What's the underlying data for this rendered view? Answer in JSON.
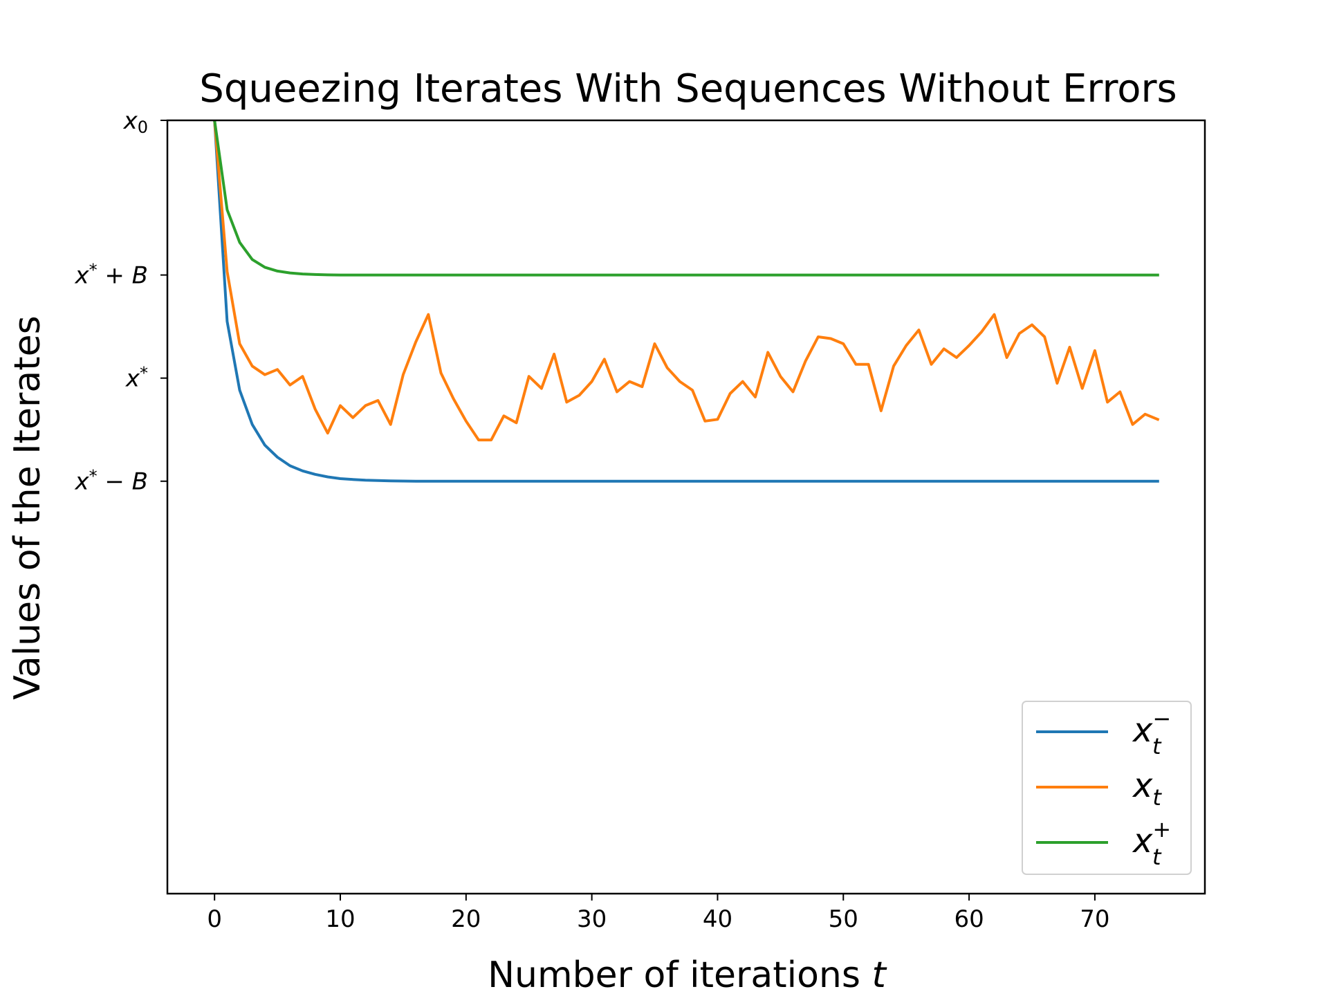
{
  "chart_data": {
    "type": "line",
    "title": "Squeezing Iterates With Sequences Without Errors",
    "xlabel": "Number of iterations",
    "xlabel_var": "t",
    "ylabel": "Values of the Iterates",
    "xlim": [
      -3.75,
      78.75
    ],
    "ylim": [
      -3.0,
      1.5
    ],
    "xticks": [
      0,
      10,
      20,
      30,
      40,
      50,
      60,
      70
    ],
    "yticks": [
      {
        "value": 1.5,
        "label": "x",
        "sub": "0",
        "sup": ""
      },
      {
        "value": 0.6,
        "label": "x",
        "sub": "",
        "sup": "*",
        "suffix": " + B"
      },
      {
        "value": 0.0,
        "label": "x",
        "sub": "",
        "sup": "*",
        "suffix": ""
      },
      {
        "value": -0.6,
        "label": "x",
        "sub": "",
        "sup": "*",
        "suffix": " − B"
      }
    ],
    "grid": false,
    "legend_position": "lower-right",
    "series": [
      {
        "name": "x_t^-",
        "legend_base": "x",
        "legend_sub": "t",
        "legend_sup": "−",
        "color": "#1f77b4",
        "x": [
          0,
          1,
          2,
          3,
          4,
          5,
          6,
          7,
          8,
          9,
          10,
          11,
          12,
          13,
          14,
          15,
          16,
          17,
          18,
          19,
          20,
          21,
          22,
          23,
          24,
          25,
          26,
          27,
          28,
          29,
          30,
          31,
          32,
          33,
          34,
          35,
          36,
          37,
          38,
          39,
          40,
          41,
          42,
          43,
          44,
          45,
          46,
          47,
          48,
          49,
          50,
          51,
          52,
          53,
          54,
          55,
          56,
          57,
          58,
          59,
          60,
          61,
          62,
          63,
          64,
          65,
          66,
          67,
          68,
          69,
          70,
          71,
          72,
          73,
          74,
          75
        ],
        "y": [
          1.5,
          0.33,
          -0.07,
          -0.27,
          -0.39,
          -0.46,
          -0.51,
          -0.54,
          -0.56,
          -0.575,
          -0.585,
          -0.59,
          -0.594,
          -0.596,
          -0.598,
          -0.599,
          -0.6,
          -0.6,
          -0.6,
          -0.6,
          -0.6,
          -0.6,
          -0.6,
          -0.6,
          -0.6,
          -0.6,
          -0.6,
          -0.6,
          -0.6,
          -0.6,
          -0.6,
          -0.6,
          -0.6,
          -0.6,
          -0.6,
          -0.6,
          -0.6,
          -0.6,
          -0.6,
          -0.6,
          -0.6,
          -0.6,
          -0.6,
          -0.6,
          -0.6,
          -0.6,
          -0.6,
          -0.6,
          -0.6,
          -0.6,
          -0.6,
          -0.6,
          -0.6,
          -0.6,
          -0.6,
          -0.6,
          -0.6,
          -0.6,
          -0.6,
          -0.6,
          -0.6,
          -0.6,
          -0.6,
          -0.6,
          -0.6,
          -0.6,
          -0.6,
          -0.6,
          -0.6,
          -0.6,
          -0.6,
          -0.6,
          -0.6,
          -0.6,
          -0.6,
          -0.6
        ]
      },
      {
        "name": "x_t",
        "legend_base": "x",
        "legend_sub": "t",
        "legend_sup": "",
        "color": "#ff7f0e",
        "x": [
          0,
          1,
          2,
          3,
          4,
          5,
          6,
          7,
          8,
          9,
          10,
          11,
          12,
          13,
          14,
          15,
          16,
          17,
          18,
          19,
          20,
          21,
          22,
          23,
          24,
          25,
          26,
          27,
          28,
          29,
          30,
          31,
          32,
          33,
          34,
          35,
          36,
          37,
          38,
          39,
          40,
          41,
          42,
          43,
          44,
          45,
          46,
          47,
          48,
          49,
          50,
          51,
          52,
          53,
          54,
          55,
          56,
          57,
          58,
          59,
          60,
          61,
          62,
          63,
          64,
          65,
          66,
          67,
          68,
          69,
          70,
          71,
          72,
          73,
          74,
          75
        ],
        "y": [
          1.5,
          0.62,
          0.2,
          0.07,
          0.02,
          0.05,
          -0.04,
          0.01,
          -0.18,
          -0.32,
          -0.16,
          -0.23,
          -0.16,
          -0.13,
          -0.27,
          0.02,
          0.21,
          0.37,
          0.03,
          -0.12,
          -0.25,
          -0.36,
          -0.36,
          -0.22,
          -0.26,
          0.01,
          -0.06,
          0.14,
          -0.14,
          -0.1,
          -0.02,
          0.11,
          -0.08,
          -0.02,
          -0.05,
          0.2,
          0.06,
          -0.02,
          -0.07,
          -0.25,
          -0.24,
          -0.09,
          -0.02,
          -0.11,
          0.15,
          0.01,
          -0.08,
          0.1,
          0.24,
          0.23,
          0.2,
          0.08,
          0.08,
          -0.19,
          0.07,
          0.19,
          0.28,
          0.08,
          0.17,
          0.12,
          0.19,
          0.27,
          0.37,
          0.12,
          0.26,
          0.31,
          0.24,
          -0.03,
          0.18,
          -0.06,
          0.16,
          -0.14,
          -0.08,
          -0.27,
          -0.21,
          -0.24
        ]
      },
      {
        "name": "x_t^+",
        "legend_base": "x",
        "legend_sub": "t",
        "legend_sup": "+",
        "color": "#2ca02c",
        "x": [
          0,
          1,
          2,
          3,
          4,
          5,
          6,
          7,
          8,
          9,
          10,
          11,
          12,
          13,
          14,
          15,
          16,
          17,
          18,
          19,
          20,
          21,
          22,
          23,
          24,
          25,
          26,
          27,
          28,
          29,
          30,
          31,
          32,
          33,
          34,
          35,
          36,
          37,
          38,
          39,
          40,
          41,
          42,
          43,
          44,
          45,
          46,
          47,
          48,
          49,
          50,
          51,
          52,
          53,
          54,
          55,
          56,
          57,
          58,
          59,
          60,
          61,
          62,
          63,
          64,
          65,
          66,
          67,
          68,
          69,
          70,
          71,
          72,
          73,
          74,
          75
        ],
        "y": [
          1.5,
          0.98,
          0.79,
          0.69,
          0.645,
          0.623,
          0.612,
          0.606,
          0.603,
          0.601,
          0.6,
          0.6,
          0.6,
          0.6,
          0.6,
          0.6,
          0.6,
          0.6,
          0.6,
          0.6,
          0.6,
          0.6,
          0.6,
          0.6,
          0.6,
          0.6,
          0.6,
          0.6,
          0.6,
          0.6,
          0.6,
          0.6,
          0.6,
          0.6,
          0.6,
          0.6,
          0.6,
          0.6,
          0.6,
          0.6,
          0.6,
          0.6,
          0.6,
          0.6,
          0.6,
          0.6,
          0.6,
          0.6,
          0.6,
          0.6,
          0.6,
          0.6,
          0.6,
          0.6,
          0.6,
          0.6,
          0.6,
          0.6,
          0.6,
          0.6,
          0.6,
          0.6,
          0.6,
          0.6,
          0.6,
          0.6,
          0.6,
          0.6,
          0.6,
          0.6,
          0.6,
          0.6,
          0.6,
          0.6,
          0.6,
          0.6
        ]
      }
    ]
  }
}
